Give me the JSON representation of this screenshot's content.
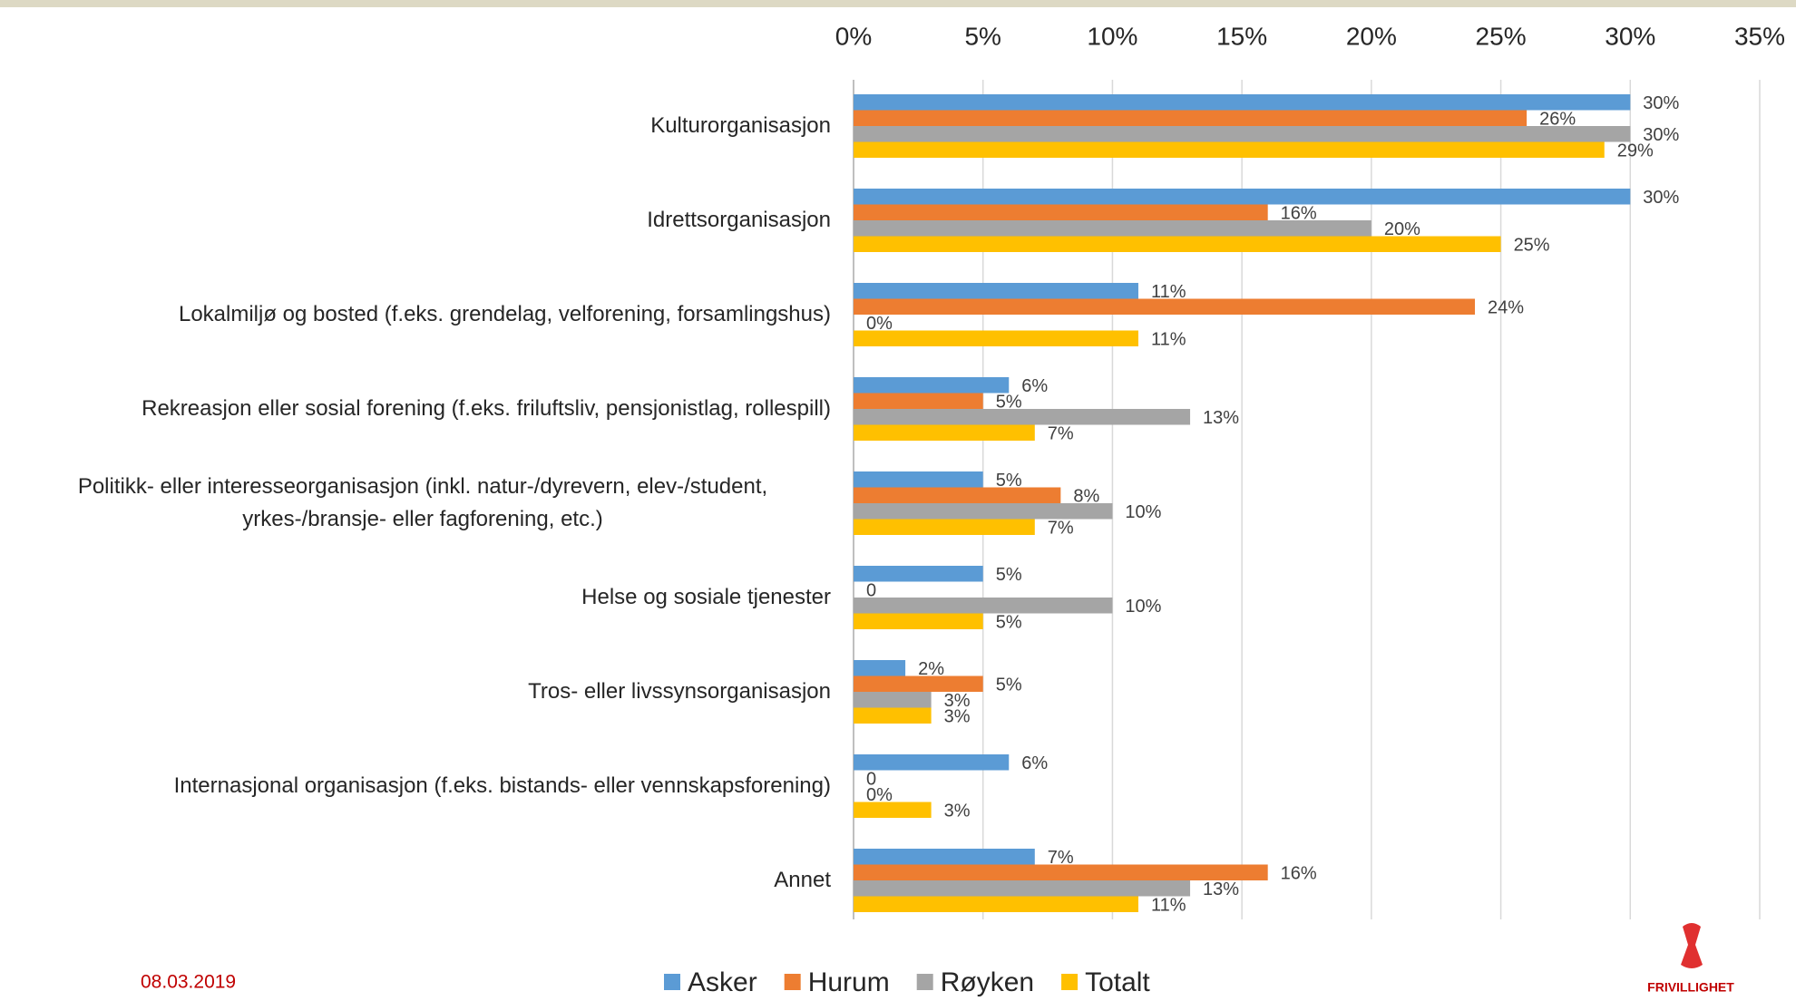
{
  "chart_data": {
    "type": "barh",
    "categories": [
      "Kulturorganisasjon",
      "Idrettsorganisasjon",
      "Lokalmiljø og bosted (f.eks. grendelag, velforening, forsamlingshus)",
      "Rekreasjon eller sosial forening (f.eks. friluftsliv, pensjonistlag, rollespill)",
      "Politikk- eller interesseorganisasjon (inkl. natur-/dyrevern, elev-/student, yrkes-/bransje- eller fagforening, etc.)",
      "Helse og sosiale tjenester",
      "Tros- eller livssynsorganisasjon",
      "Internasjonal organisasjon (f.eks. bistands- eller vennskapsforening)",
      "Annet"
    ],
    "series": [
      {
        "name": "Asker",
        "color": "#5b9bd5",
        "values": [
          30,
          30,
          11,
          6,
          5,
          5,
          2,
          6,
          7
        ],
        "value_labels": [
          "30%",
          "30%",
          "11%",
          "6%",
          "5%",
          "5%",
          "2%",
          "6%",
          "7%"
        ]
      },
      {
        "name": "Hurum",
        "color": "#ed7d31",
        "values": [
          26,
          16,
          24,
          5,
          8,
          0,
          5,
          0,
          16
        ],
        "value_labels": [
          "26%",
          "16%",
          "24%",
          "5%",
          "8%",
          "0",
          "5%",
          "0",
          "16%"
        ]
      },
      {
        "name": "Røyken",
        "color": "#a5a5a5",
        "values": [
          30,
          20,
          0,
          13,
          10,
          10,
          3,
          0,
          13
        ],
        "value_labels": [
          "30%",
          "20%",
          "0%",
          "13%",
          "10%",
          "10%",
          "3%",
          "0%",
          "13%"
        ]
      },
      {
        "name": "Totalt",
        "color": "#ffc000",
        "values": [
          29,
          25,
          11,
          7,
          7,
          5,
          3,
          3,
          11
        ],
        "value_labels": [
          "29%",
          "25%",
          "11%",
          "7%",
          "7%",
          "5%",
          "3%",
          "3%",
          "11%"
        ]
      }
    ],
    "xlim": [
      0,
      35
    ],
    "xticks": [
      {
        "value": 0,
        "label": "0%"
      },
      {
        "value": 5,
        "label": "5%"
      },
      {
        "value": 10,
        "label": "10%"
      },
      {
        "value": 15,
        "label": "15%"
      },
      {
        "value": 20,
        "label": "20%"
      },
      {
        "value": 25,
        "label": "25%"
      },
      {
        "value": 30,
        "label": "30%"
      },
      {
        "value": 35,
        "label": "35%"
      }
    ],
    "grid": true,
    "legend": "bottom"
  },
  "footer": {
    "date": "08.03.2019",
    "logo": "FRIVILLIGHET"
  }
}
